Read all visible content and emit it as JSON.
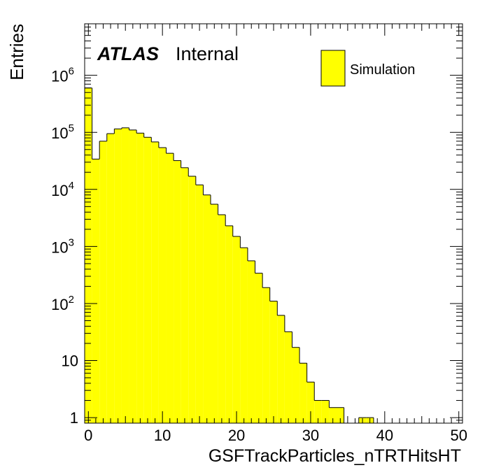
{
  "chart_data": {
    "type": "bar",
    "histogram": true,
    "atlas_label": "ATLAS",
    "atlas_sub": "Internal",
    "xlabel": "GSFTrackParticles_nTRTHitsHT",
    "ylabel": "Entries",
    "xlim": [
      -0.5,
      50.5
    ],
    "ylim": [
      0.8,
      8000000
    ],
    "log_y": true,
    "x_tick_labels": [
      "0",
      "10",
      "20",
      "30",
      "40",
      "50"
    ],
    "y_tick_labels": [
      {
        "value": 1,
        "base": "1",
        "exp": ""
      },
      {
        "value": 10,
        "base": "10",
        "exp": ""
      },
      {
        "value": 100,
        "base": "10",
        "exp": "2"
      },
      {
        "value": 1000,
        "base": "10",
        "exp": "3"
      },
      {
        "value": 10000,
        "base": "10",
        "exp": "4"
      },
      {
        "value": 100000,
        "base": "10",
        "exp": "5"
      },
      {
        "value": 1000000,
        "base": "10",
        "exp": "6"
      }
    ],
    "legend": {
      "placement": "top-right",
      "entries": [
        "Simulation"
      ]
    },
    "fill_color": "#ffff00",
    "line_color": "#000000",
    "series": [
      {
        "name": "Simulation",
        "bin_width": 1,
        "bin_start": -0.5,
        "values": [
          600000,
          34000,
          70000,
          95000,
          115000,
          120000,
          110000,
          97000,
          82000,
          68000,
          54000,
          43000,
          32000,
          24000,
          17000,
          12000,
          8000,
          5500,
          3600,
          2300,
          1500,
          950,
          560,
          340,
          190,
          110,
          62,
          32,
          17,
          9,
          4.2,
          2,
          2,
          1.5,
          1.5,
          0,
          0,
          1,
          1,
          0,
          0,
          0,
          0,
          0,
          0,
          0,
          0,
          0,
          0,
          0,
          0
        ]
      }
    ]
  }
}
